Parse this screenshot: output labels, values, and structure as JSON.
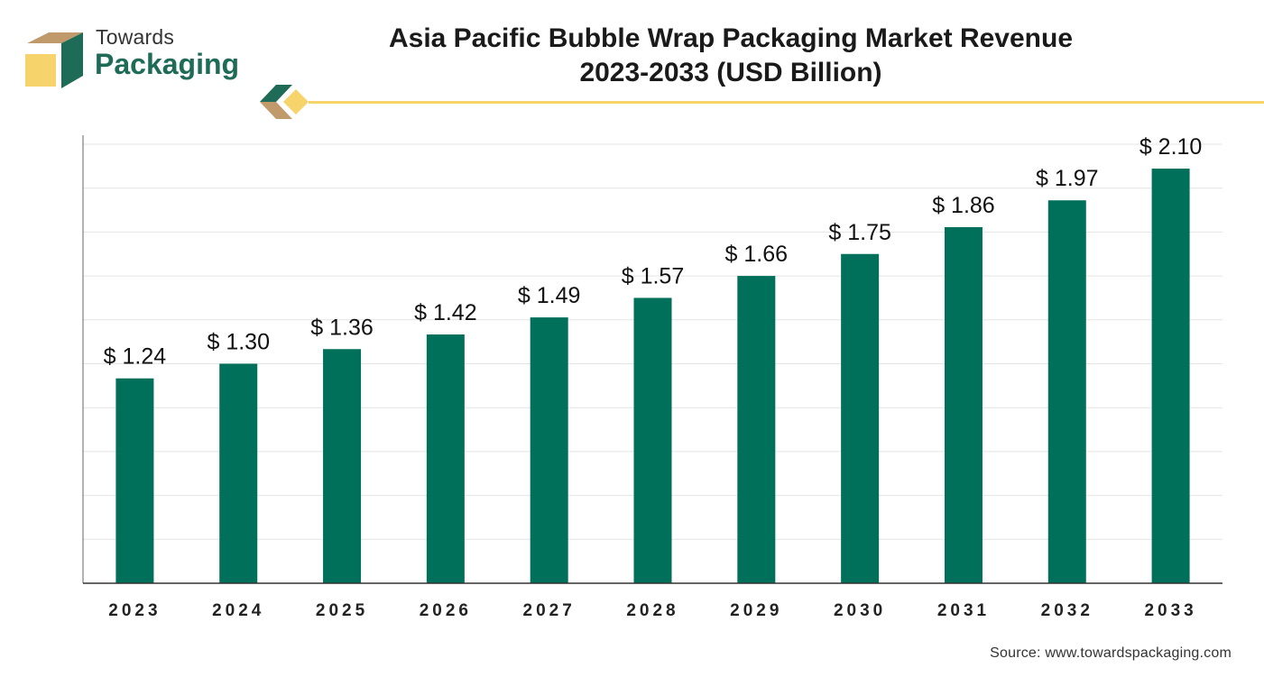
{
  "brand": {
    "line1": "Towards",
    "line2": "Packaging",
    "colors": {
      "green": "#1e6b57",
      "tan": "#c09a6b",
      "yellow": "#f6d36b"
    }
  },
  "title": {
    "line1": "Asia Pacific Bubble Wrap Packaging Market Revenue",
    "line2": "2023-2033 (USD Billion)"
  },
  "source": "Source: www.towardspackaging.com",
  "chart_data": {
    "type": "bar",
    "categories": [
      "2023",
      "2024",
      "2025",
      "2026",
      "2027",
      "2028",
      "2029",
      "2030",
      "2031",
      "2032",
      "2033"
    ],
    "values": [
      1.24,
      1.3,
      1.36,
      1.42,
      1.49,
      1.57,
      1.66,
      1.75,
      1.86,
      1.97,
      2.1
    ],
    "labels": [
      "$ 1.24",
      "$ 1.30",
      "$ 1.36",
      "$ 1.42",
      "$ 1.49",
      "$ 1.57",
      "$ 1.66",
      "$ 1.75",
      "$ 1.86",
      "$ 1.97",
      "$ 2.10"
    ],
    "bar_color": "#00705a",
    "ylim": [
      0.4,
      2.2
    ],
    "grid": true,
    "y_tick_labels_shown": false
  }
}
